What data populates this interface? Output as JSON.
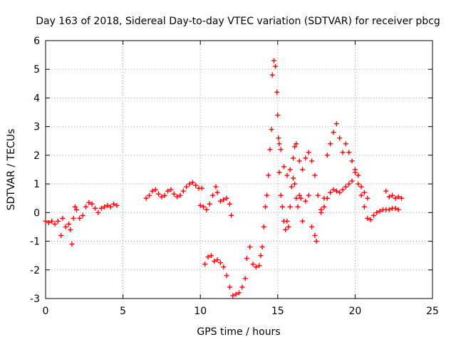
{
  "chart_data": {
    "type": "scatter",
    "title": "Day 163 of 2018, Sidereal Day-to-day VTEC variation (SDTVAR) for receiver pbcg",
    "xlabel": "GPS time / hours",
    "ylabel": "SDTVAR / TECUs",
    "xlim": [
      0,
      25
    ],
    "ylim": [
      -3,
      6
    ],
    "xticks": [
      "0",
      "5",
      "10",
      "15",
      "20",
      "25"
    ],
    "yticks": [
      "-3",
      "-2",
      "-1",
      "0",
      "1",
      "2",
      "3",
      "4",
      "5",
      "6"
    ],
    "grid": true,
    "marker": "plus",
    "color": "#ff0000",
    "series": [
      {
        "name": "SDTVAR",
        "points": [
          [
            0.0,
            -0.3
          ],
          [
            0.2,
            -0.35
          ],
          [
            0.4,
            -0.3
          ],
          [
            0.6,
            -0.4
          ],
          [
            0.8,
            -0.3
          ],
          [
            1.0,
            -0.8
          ],
          [
            1.1,
            -0.2
          ],
          [
            1.3,
            -0.5
          ],
          [
            1.5,
            -0.4
          ],
          [
            1.6,
            -0.6
          ],
          [
            1.7,
            -1.1
          ],
          [
            1.8,
            -0.2
          ],
          [
            1.9,
            0.2
          ],
          [
            2.0,
            0.1
          ],
          [
            2.2,
            -0.2
          ],
          [
            2.4,
            -0.1
          ],
          [
            2.6,
            0.2
          ],
          [
            2.8,
            0.35
          ],
          [
            3.0,
            0.3
          ],
          [
            3.2,
            0.15
          ],
          [
            3.4,
            0.0
          ],
          [
            3.6,
            0.15
          ],
          [
            3.8,
            0.2
          ],
          [
            4.0,
            0.25
          ],
          [
            4.2,
            0.2
          ],
          [
            4.4,
            0.3
          ],
          [
            4.6,
            0.25
          ],
          [
            6.5,
            0.5
          ],
          [
            6.7,
            0.6
          ],
          [
            6.9,
            0.75
          ],
          [
            7.1,
            0.8
          ],
          [
            7.3,
            0.65
          ],
          [
            7.5,
            0.55
          ],
          [
            7.7,
            0.6
          ],
          [
            7.9,
            0.75
          ],
          [
            8.1,
            0.8
          ],
          [
            8.3,
            0.65
          ],
          [
            8.5,
            0.55
          ],
          [
            8.7,
            0.6
          ],
          [
            8.9,
            0.75
          ],
          [
            9.1,
            0.9
          ],
          [
            9.3,
            1.0
          ],
          [
            9.5,
            1.05
          ],
          [
            9.7,
            0.95
          ],
          [
            9.9,
            0.85
          ],
          [
            10.1,
            0.85
          ],
          [
            10.0,
            0.25
          ],
          [
            10.2,
            0.2
          ],
          [
            10.4,
            0.1
          ],
          [
            10.6,
            0.3
          ],
          [
            10.8,
            0.6
          ],
          [
            11.0,
            0.9
          ],
          [
            11.1,
            0.7
          ],
          [
            11.3,
            0.4
          ],
          [
            11.5,
            0.45
          ],
          [
            11.7,
            0.5
          ],
          [
            11.9,
            0.3
          ],
          [
            12.0,
            -0.1
          ],
          [
            10.3,
            -1.8
          ],
          [
            10.5,
            -1.55
          ],
          [
            10.7,
            -1.5
          ],
          [
            10.9,
            -1.7
          ],
          [
            11.1,
            -1.65
          ],
          [
            11.3,
            -1.75
          ],
          [
            11.5,
            -1.9
          ],
          [
            11.7,
            -2.2
          ],
          [
            11.9,
            -2.6
          ],
          [
            12.1,
            -2.9
          ],
          [
            12.3,
            -2.85
          ],
          [
            12.5,
            -2.8
          ],
          [
            12.7,
            -2.6
          ],
          [
            12.9,
            -2.3
          ],
          [
            13.0,
            -1.6
          ],
          [
            13.2,
            -1.2
          ],
          [
            13.4,
            -1.8
          ],
          [
            13.6,
            -1.9
          ],
          [
            13.8,
            -1.85
          ],
          [
            13.9,
            -1.5
          ],
          [
            14.0,
            -1.2
          ],
          [
            14.1,
            -0.5
          ],
          [
            14.2,
            0.2
          ],
          [
            14.3,
            0.6
          ],
          [
            14.4,
            1.3
          ],
          [
            14.5,
            2.2
          ],
          [
            14.6,
            2.9
          ],
          [
            14.65,
            4.8
          ],
          [
            14.75,
            5.3
          ],
          [
            14.85,
            5.1
          ],
          [
            14.95,
            4.2
          ],
          [
            15.0,
            3.4
          ],
          [
            15.05,
            2.6
          ],
          [
            15.1,
            1.4
          ],
          [
            15.2,
            0.6
          ],
          [
            15.3,
            0.2
          ],
          [
            15.4,
            -0.3
          ],
          [
            15.5,
            -0.6
          ],
          [
            15.6,
            -0.3
          ],
          [
            15.7,
            -0.5
          ],
          [
            15.8,
            0.2
          ],
          [
            15.9,
            0.9
          ],
          [
            16.0,
            1.2
          ],
          [
            16.1,
            1.0
          ],
          [
            16.2,
            0.5
          ],
          [
            16.3,
            0.2
          ],
          [
            16.4,
            0.6
          ],
          [
            16.5,
            0.5
          ],
          [
            16.6,
            -0.3
          ],
          [
            16.8,
            0.4
          ],
          [
            17.0,
            0.6
          ],
          [
            17.2,
            -0.5
          ],
          [
            17.4,
            -0.8
          ],
          [
            17.5,
            -1.0
          ],
          [
            15.1,
            2.4
          ],
          [
            15.2,
            2.2
          ],
          [
            15.4,
            1.6
          ],
          [
            15.6,
            1.3
          ],
          [
            15.8,
            1.5
          ],
          [
            16.0,
            1.9
          ],
          [
            16.1,
            2.3
          ],
          [
            16.2,
            2.4
          ],
          [
            16.4,
            1.8
          ],
          [
            16.6,
            1.5
          ],
          [
            16.8,
            1.9
          ],
          [
            17.0,
            2.1
          ],
          [
            17.2,
            1.8
          ],
          [
            17.4,
            1.3
          ],
          [
            17.6,
            0.6
          ],
          [
            17.8,
            0.1
          ],
          [
            18.0,
            0.2
          ],
          [
            18.2,
            0.5
          ],
          [
            18.4,
            0.7
          ],
          [
            18.6,
            0.8
          ],
          [
            18.8,
            0.75
          ],
          [
            19.0,
            0.7
          ],
          [
            19.2,
            0.8
          ],
          [
            19.4,
            0.9
          ],
          [
            19.6,
            1.0
          ],
          [
            19.8,
            1.1
          ],
          [
            20.0,
            1.4
          ],
          [
            20.2,
            1.0
          ],
          [
            20.4,
            0.6
          ],
          [
            20.6,
            0.2
          ],
          [
            20.8,
            -0.2
          ],
          [
            21.0,
            -0.25
          ],
          [
            21.2,
            -0.1
          ],
          [
            21.4,
            0.0
          ],
          [
            21.6,
            0.05
          ],
          [
            21.8,
            0.1
          ],
          [
            22.0,
            0.1
          ],
          [
            22.2,
            0.1
          ],
          [
            22.4,
            0.15
          ],
          [
            22.6,
            0.15
          ],
          [
            22.8,
            0.1
          ],
          [
            17.8,
            0.0
          ],
          [
            18.0,
            0.5
          ],
          [
            18.2,
            2.0
          ],
          [
            18.4,
            2.4
          ],
          [
            18.6,
            2.8
          ],
          [
            18.8,
            3.1
          ],
          [
            19.0,
            2.6
          ],
          [
            19.2,
            2.1
          ],
          [
            19.4,
            2.4
          ],
          [
            19.6,
            2.1
          ],
          [
            19.8,
            1.8
          ],
          [
            20.0,
            1.5
          ],
          [
            20.2,
            1.3
          ],
          [
            20.4,
            0.9
          ],
          [
            20.6,
            0.7
          ],
          [
            20.8,
            0.5
          ],
          [
            22.0,
            0.75
          ],
          [
            22.2,
            0.55
          ],
          [
            22.4,
            0.6
          ],
          [
            22.6,
            0.5
          ],
          [
            22.8,
            0.55
          ],
          [
            23.0,
            0.5
          ]
        ]
      }
    ]
  }
}
